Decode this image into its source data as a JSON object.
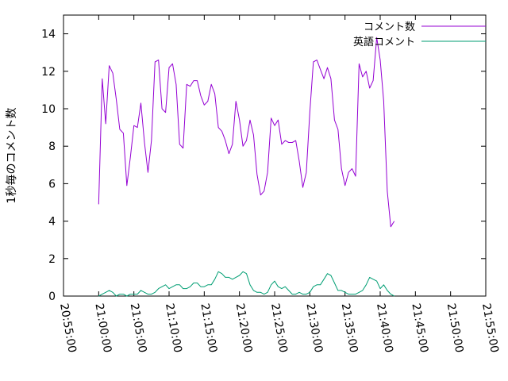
{
  "chart_data": {
    "type": "line",
    "ylabel": "1秒毎のコメント数",
    "xlim": [
      "20:55:00",
      "21:55:00"
    ],
    "ylim": [
      0,
      15
    ],
    "x_ticks": [
      "20:55:00",
      "21:00:00",
      "21:05:00",
      "21:10:00",
      "21:15:00",
      "21:20:00",
      "21:25:00",
      "21:30:00",
      "21:35:00",
      "21:40:00",
      "21:45:00",
      "21:50:00",
      "21:55:00"
    ],
    "y_ticks": [
      "0",
      "2",
      "4",
      "6",
      "8",
      "10",
      "12",
      "14"
    ],
    "grid": false,
    "legend_position": "top-right",
    "series": [
      {
        "name": "コメント数",
        "color": "#9400d3",
        "points": [
          [
            "21:00:00",
            4.9
          ],
          [
            "21:00:30",
            11.6
          ],
          [
            "21:01:00",
            9.2
          ],
          [
            "21:01:30",
            12.3
          ],
          [
            "21:02:00",
            11.9
          ],
          [
            "21:02:30",
            10.5
          ],
          [
            "21:03:00",
            8.9
          ],
          [
            "21:03:30",
            8.7
          ],
          [
            "21:04:00",
            5.9
          ],
          [
            "21:04:30",
            7.4
          ],
          [
            "21:05:00",
            9.1
          ],
          [
            "21:05:30",
            9.0
          ],
          [
            "21:06:00",
            10.3
          ],
          [
            "21:06:30",
            8.2
          ],
          [
            "21:07:00",
            6.6
          ],
          [
            "21:07:30",
            8.3
          ],
          [
            "21:08:00",
            12.5
          ],
          [
            "21:08:30",
            12.6
          ],
          [
            "21:09:00",
            10.0
          ],
          [
            "21:09:30",
            9.8
          ],
          [
            "21:10:00",
            12.2
          ],
          [
            "21:10:30",
            12.4
          ],
          [
            "21:11:00",
            11.3
          ],
          [
            "21:11:30",
            8.1
          ],
          [
            "21:12:00",
            7.9
          ],
          [
            "21:12:30",
            11.3
          ],
          [
            "21:13:00",
            11.2
          ],
          [
            "21:13:30",
            11.5
          ],
          [
            "21:14:00",
            11.5
          ],
          [
            "21:14:30",
            10.7
          ],
          [
            "21:15:00",
            10.2
          ],
          [
            "21:15:30",
            10.4
          ],
          [
            "21:16:00",
            11.3
          ],
          [
            "21:16:30",
            10.8
          ],
          [
            "21:17:00",
            9.0
          ],
          [
            "21:17:30",
            8.8
          ],
          [
            "21:18:00",
            8.3
          ],
          [
            "21:18:30",
            7.6
          ],
          [
            "21:19:00",
            8.1
          ],
          [
            "21:19:30",
            10.4
          ],
          [
            "21:20:00",
            9.4
          ],
          [
            "21:20:30",
            8.0
          ],
          [
            "21:21:00",
            8.3
          ],
          [
            "21:21:30",
            9.4
          ],
          [
            "21:22:00",
            8.6
          ],
          [
            "21:22:30",
            6.5
          ],
          [
            "21:23:00",
            5.4
          ],
          [
            "21:23:30",
            5.6
          ],
          [
            "21:24:00",
            6.6
          ],
          [
            "21:24:30",
            9.5
          ],
          [
            "21:25:00",
            9.1
          ],
          [
            "21:25:30",
            9.4
          ],
          [
            "21:26:00",
            8.1
          ],
          [
            "21:26:30",
            8.3
          ],
          [
            "21:27:00",
            8.2
          ],
          [
            "21:27:30",
            8.2
          ],
          [
            "21:28:00",
            8.3
          ],
          [
            "21:28:30",
            7.2
          ],
          [
            "21:29:00",
            5.8
          ],
          [
            "21:29:30",
            6.6
          ],
          [
            "21:30:00",
            9.8
          ],
          [
            "21:30:30",
            12.5
          ],
          [
            "21:31:00",
            12.6
          ],
          [
            "21:31:30",
            12.1
          ],
          [
            "21:32:00",
            11.6
          ],
          [
            "21:32:30",
            12.2
          ],
          [
            "21:33:00",
            11.6
          ],
          [
            "21:33:30",
            9.4
          ],
          [
            "21:34:00",
            8.9
          ],
          [
            "21:34:30",
            6.8
          ],
          [
            "21:35:00",
            5.9
          ],
          [
            "21:35:30",
            6.6
          ],
          [
            "21:36:00",
            6.8
          ],
          [
            "21:36:30",
            6.4
          ],
          [
            "21:37:00",
            12.4
          ],
          [
            "21:37:30",
            11.7
          ],
          [
            "21:38:00",
            12.0
          ],
          [
            "21:38:30",
            11.1
          ],
          [
            "21:39:00",
            11.5
          ],
          [
            "21:39:30",
            13.8
          ],
          [
            "21:40:00",
            12.6
          ],
          [
            "21:40:30",
            10.4
          ],
          [
            "21:41:00",
            5.6
          ],
          [
            "21:41:30",
            3.7
          ],
          [
            "21:42:00",
            4.0
          ]
        ]
      },
      {
        "name": "英語コメント",
        "color": "#009e73",
        "points": [
          [
            "21:00:00",
            0.0
          ],
          [
            "21:00:30",
            0.1
          ],
          [
            "21:01:00",
            0.2
          ],
          [
            "21:01:30",
            0.3
          ],
          [
            "21:02:00",
            0.2
          ],
          [
            "21:02:30",
            0.0
          ],
          [
            "21:03:00",
            0.1
          ],
          [
            "21:03:30",
            0.1
          ],
          [
            "21:04:00",
            0.0
          ],
          [
            "21:04:30",
            0.1
          ],
          [
            "21:05:00",
            0.1
          ],
          [
            "21:05:30",
            0.1
          ],
          [
            "21:06:00",
            0.3
          ],
          [
            "21:06:30",
            0.2
          ],
          [
            "21:07:00",
            0.1
          ],
          [
            "21:07:30",
            0.1
          ],
          [
            "21:08:00",
            0.2
          ],
          [
            "21:08:30",
            0.4
          ],
          [
            "21:09:00",
            0.5
          ],
          [
            "21:09:30",
            0.6
          ],
          [
            "21:10:00",
            0.4
          ],
          [
            "21:10:30",
            0.5
          ],
          [
            "21:11:00",
            0.6
          ],
          [
            "21:11:30",
            0.6
          ],
          [
            "21:12:00",
            0.4
          ],
          [
            "21:12:30",
            0.4
          ],
          [
            "21:13:00",
            0.5
          ],
          [
            "21:13:30",
            0.7
          ],
          [
            "21:14:00",
            0.7
          ],
          [
            "21:14:30",
            0.5
          ],
          [
            "21:15:00",
            0.5
          ],
          [
            "21:15:30",
            0.6
          ],
          [
            "21:16:00",
            0.6
          ],
          [
            "21:16:30",
            0.9
          ],
          [
            "21:17:00",
            1.3
          ],
          [
            "21:17:30",
            1.2
          ],
          [
            "21:18:00",
            1.0
          ],
          [
            "21:18:30",
            1.0
          ],
          [
            "21:19:00",
            0.9
          ],
          [
            "21:19:30",
            1.0
          ],
          [
            "21:20:00",
            1.1
          ],
          [
            "21:20:30",
            1.3
          ],
          [
            "21:21:00",
            1.2
          ],
          [
            "21:21:30",
            0.6
          ],
          [
            "21:22:00",
            0.3
          ],
          [
            "21:22:30",
            0.2
          ],
          [
            "21:23:00",
            0.2
          ],
          [
            "21:23:30",
            0.1
          ],
          [
            "21:24:00",
            0.2
          ],
          [
            "21:24:30",
            0.6
          ],
          [
            "21:25:00",
            0.8
          ],
          [
            "21:25:30",
            0.5
          ],
          [
            "21:26:00",
            0.4
          ],
          [
            "21:26:30",
            0.5
          ],
          [
            "21:27:00",
            0.3
          ],
          [
            "21:27:30",
            0.1
          ],
          [
            "21:28:00",
            0.1
          ],
          [
            "21:28:30",
            0.2
          ],
          [
            "21:29:00",
            0.1
          ],
          [
            "21:29:30",
            0.1
          ],
          [
            "21:30:00",
            0.2
          ],
          [
            "21:30:30",
            0.5
          ],
          [
            "21:31:00",
            0.6
          ],
          [
            "21:31:30",
            0.6
          ],
          [
            "21:32:00",
            0.9
          ],
          [
            "21:32:30",
            1.2
          ],
          [
            "21:33:00",
            1.1
          ],
          [
            "21:33:30",
            0.7
          ],
          [
            "21:34:00",
            0.3
          ],
          [
            "21:34:30",
            0.3
          ],
          [
            "21:35:00",
            0.2
          ],
          [
            "21:35:30",
            0.1
          ],
          [
            "21:36:00",
            0.1
          ],
          [
            "21:36:30",
            0.1
          ],
          [
            "21:37:00",
            0.2
          ],
          [
            "21:37:30",
            0.3
          ],
          [
            "21:38:00",
            0.6
          ],
          [
            "21:38:30",
            1.0
          ],
          [
            "21:39:00",
            0.9
          ],
          [
            "21:39:30",
            0.8
          ],
          [
            "21:40:00",
            0.4
          ],
          [
            "21:40:30",
            0.6
          ],
          [
            "21:41:00",
            0.3
          ],
          [
            "21:41:30",
            0.1
          ],
          [
            "21:42:00",
            0.0
          ]
        ]
      }
    ]
  }
}
